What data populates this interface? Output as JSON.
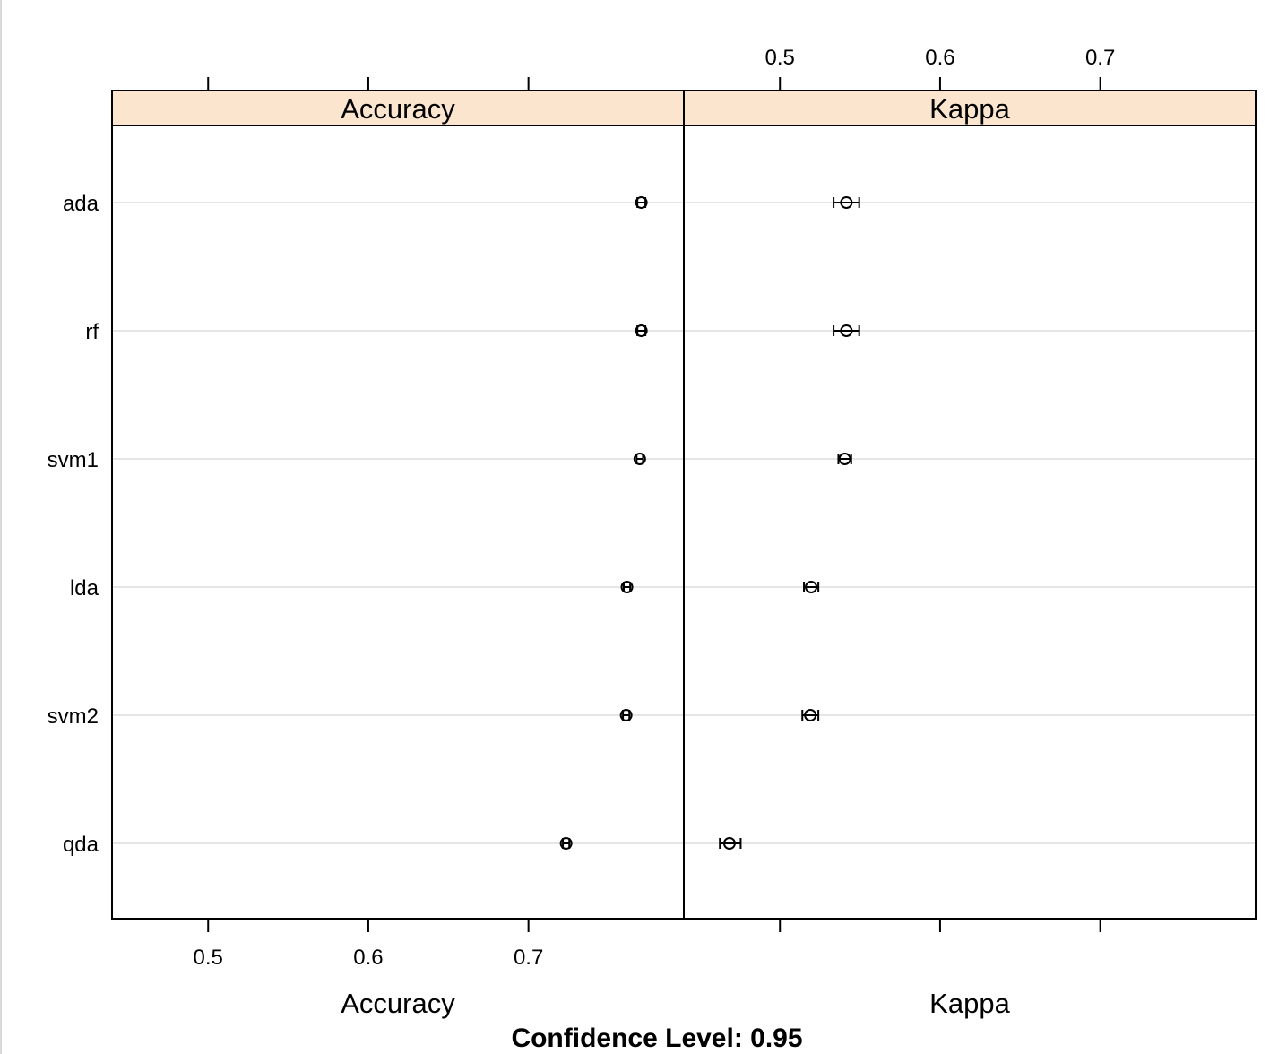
{
  "chart_data": {
    "type": "dotplot",
    "caption": "Confidence Level: 0.95",
    "models": [
      "ada",
      "rf",
      "svm1",
      "lda",
      "svm2",
      "qda"
    ],
    "panels": [
      {
        "name": "Accuracy",
        "xlabel": "Accuracy",
        "ticks": [
          "0.5",
          "0.6",
          "0.7"
        ],
        "tick_side": "bottom",
        "xlim": [
          0.44,
          0.797
        ],
        "estimates": [
          0.7705,
          0.7705,
          0.7695,
          0.7615,
          0.761,
          0.7235
        ],
        "lower": [
          0.768,
          0.768,
          0.7675,
          0.7595,
          0.759,
          0.7215
        ],
        "upper": [
          0.773,
          0.773,
          0.7715,
          0.7635,
          0.763,
          0.7255
        ]
      },
      {
        "name": "Kappa",
        "xlabel": "Kappa",
        "ticks": [
          "0.5",
          "0.6",
          "0.7"
        ],
        "tick_side": "top",
        "xlim": [
          0.44,
          0.797
        ],
        "estimates": [
          0.5415,
          0.5415,
          0.5405,
          0.5195,
          0.519,
          0.4685
        ],
        "lower": [
          0.5335,
          0.5335,
          0.5365,
          0.515,
          0.514,
          0.4625
        ],
        "upper": [
          0.5495,
          0.5495,
          0.5445,
          0.524,
          0.524,
          0.4755
        ]
      }
    ],
    "colors": {
      "strip_fill": "#fbe5cf",
      "gridline": "#e6e6e6",
      "axis": "#000000"
    }
  }
}
